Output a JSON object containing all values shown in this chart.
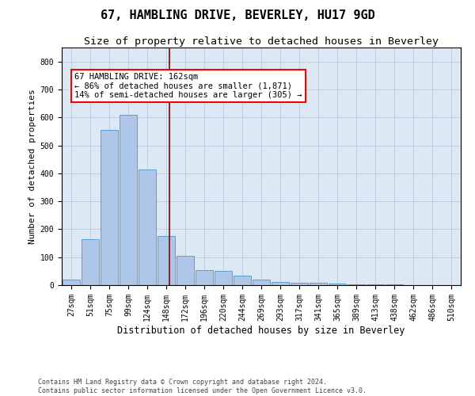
{
  "title": "67, HAMBLING DRIVE, BEVERLEY, HU17 9GD",
  "subtitle": "Size of property relative to detached houses in Beverley",
  "xlabel": "Distribution of detached houses by size in Beverley",
  "ylabel": "Number of detached properties",
  "footer_line1": "Contains HM Land Registry data © Crown copyright and database right 2024.",
  "footer_line2": "Contains public sector information licensed under the Open Government Licence v3.0.",
  "categories": [
    "27sqm",
    "51sqm",
    "75sqm",
    "99sqm",
    "124sqm",
    "148sqm",
    "172sqm",
    "196sqm",
    "220sqm",
    "244sqm",
    "269sqm",
    "293sqm",
    "317sqm",
    "341sqm",
    "365sqm",
    "389sqm",
    "413sqm",
    "438sqm",
    "462sqm",
    "486sqm",
    "510sqm"
  ],
  "values": [
    20,
    165,
    555,
    610,
    415,
    175,
    105,
    55,
    50,
    35,
    20,
    10,
    9,
    8,
    5,
    3,
    3,
    2,
    1,
    1,
    0
  ],
  "bar_color": "#aec6e8",
  "bar_edge_color": "#5a9fd4",
  "red_line_x": 5.15,
  "annotation_text_line1": "67 HAMBLING DRIVE: 162sqm",
  "annotation_text_line2": "← 86% of detached houses are smaller (1,871)",
  "annotation_text_line3": "14% of semi-detached houses are larger (305) →",
  "ylim": [
    0,
    850
  ],
  "yticks": [
    0,
    100,
    200,
    300,
    400,
    500,
    600,
    700,
    800
  ],
  "background_color": "#ffffff",
  "plot_bg_color": "#dce9f5",
  "grid_color": "#b0c4d8",
  "title_fontsize": 11,
  "subtitle_fontsize": 9.5,
  "annotation_fontsize": 7.5,
  "ylabel_fontsize": 8,
  "xlabel_fontsize": 8.5,
  "tick_fontsize": 7,
  "footer_fontsize": 6
}
